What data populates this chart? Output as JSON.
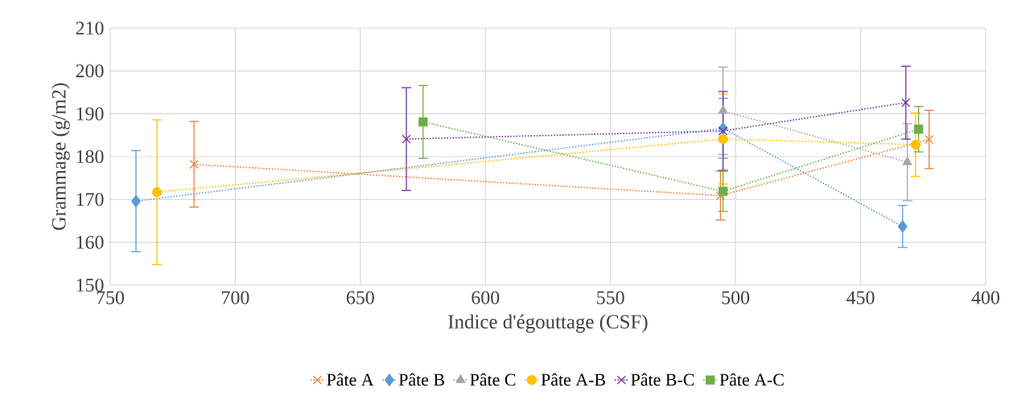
{
  "chart_data": {
    "type": "line",
    "xlabel": "Indice d'égouttage (CSF)",
    "ylabel": "Grammage (g/m2)",
    "xlim": [
      750,
      400
    ],
    "xticks": [
      750,
      700,
      650,
      600,
      550,
      500,
      450,
      400
    ],
    "ylim": [
      150,
      210
    ],
    "yticks": [
      150,
      160,
      170,
      180,
      190,
      200,
      210
    ],
    "grid": true,
    "legend": "bottom",
    "line_style": "dotted",
    "series": [
      {
        "name": "Pâte A",
        "color": "#ed7d31",
        "marker": "cross",
        "x": [
          716.5,
          506,
          422.6
        ],
        "values": [
          178.2,
          170.9,
          184.0
        ],
        "errors": [
          10,
          5.7,
          6.8
        ]
      },
      {
        "name": "Pâte B",
        "color": "#5b9bd5",
        "marker": "diamond",
        "x": [
          739.7,
          505,
          433.2
        ],
        "values": [
          169.6,
          186.6,
          163.7
        ],
        "errors": [
          11.8,
          7,
          4.9
        ]
      },
      {
        "name": "Pâte C",
        "color": "#a5a5a5",
        "marker": "triangle",
        "x": [
          505,
          431.3
        ],
        "values": [
          190.7,
          178.7
        ],
        "errors": [
          10.2,
          9
        ]
      },
      {
        "name": "Pâte A-B",
        "color": "#ffc000",
        "marker": "circle",
        "x": [
          731.3,
          505,
          428
        ],
        "values": [
          171.7,
          184.1,
          182.8
        ],
        "errors": [
          16.9,
          10.5,
          7.4
        ]
      },
      {
        "name": "Pâte B-C",
        "color": "#7030a0",
        "marker": "cross",
        "x": [
          631.6,
          505,
          431.9
        ],
        "values": [
          184.1,
          186.0,
          192.6
        ],
        "errors": [
          12,
          9.2,
          8.5
        ]
      },
      {
        "name": "Pâte A-C",
        "color": "#70ad47",
        "marker": "square",
        "x": [
          624.9,
          505,
          426.8
        ],
        "values": [
          188.1,
          171.9,
          186.4
        ],
        "errors": [
          8.5,
          4.7,
          5.3
        ]
      }
    ]
  }
}
